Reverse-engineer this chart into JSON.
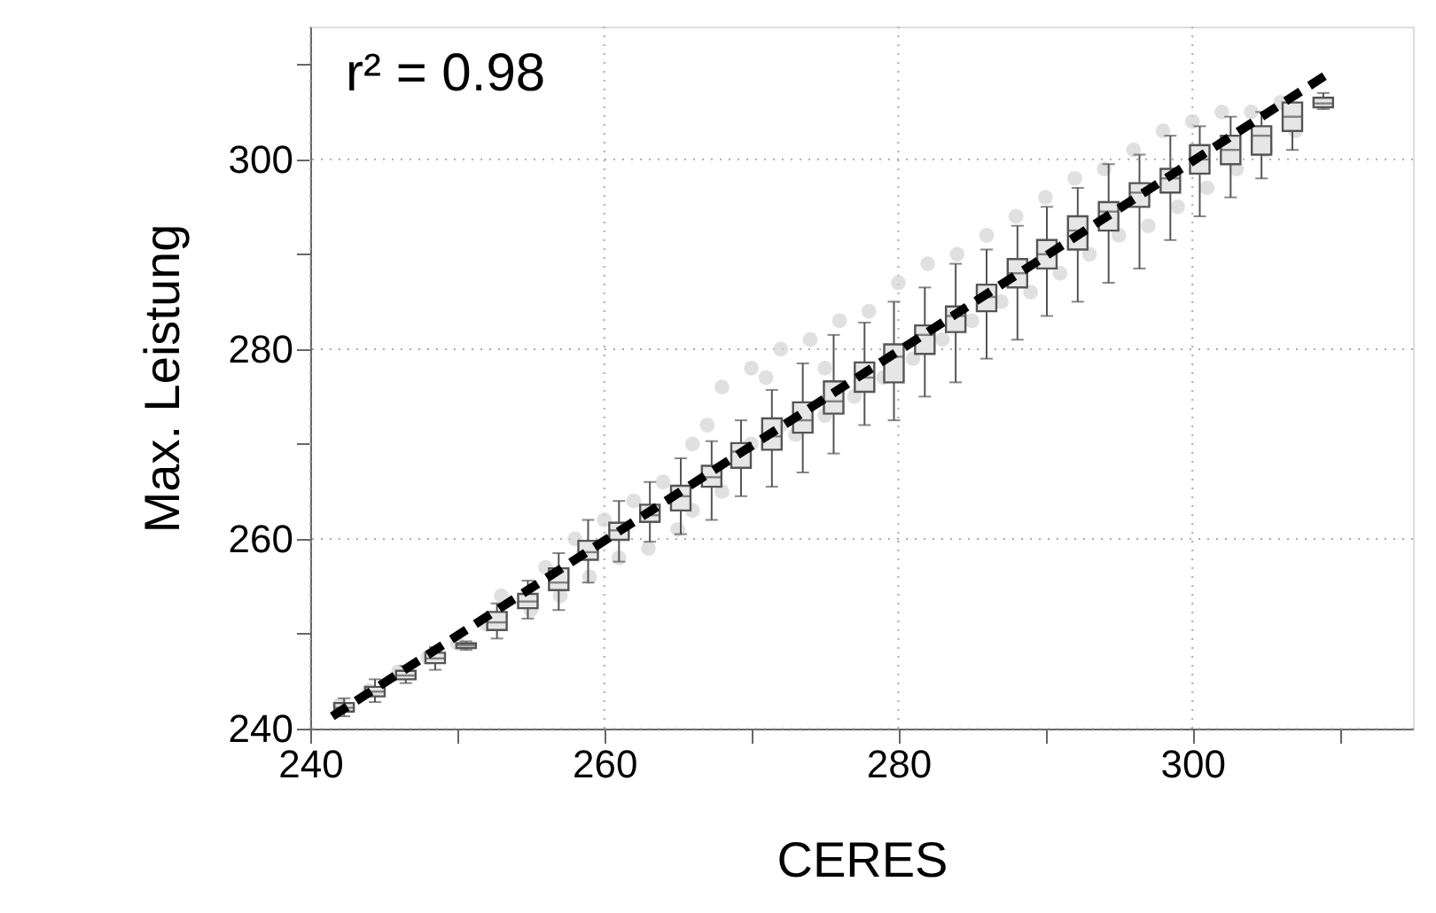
{
  "chart_data": {
    "type": "scatter",
    "xlabel": "CERES",
    "ylabel": "Max. Leistung",
    "annotations": [
      "r² = 0.98"
    ],
    "xlim": [
      240,
      315
    ],
    "ylim": [
      240,
      314
    ],
    "xticks": [
      240,
      {
        "value": 250,
        "label": null
      },
      260,
      {
        "value": 270,
        "label": null
      },
      280,
      {
        "value": 290,
        "label": null
      },
      300,
      {
        "value": 310,
        "label": null
      }
    ],
    "yticks": [
      240,
      {
        "value": 250,
        "label": null
      },
      260,
      {
        "value": 270,
        "label": null
      },
      280,
      {
        "value": 290,
        "label": null
      },
      300,
      {
        "value": 310,
        "label": null
      }
    ],
    "grid": true,
    "series": [
      {
        "color": "#d3d3d3",
        "marker": "circle",
        "x": [
          242,
          244,
          246,
          248,
          250,
          252,
          253,
          255,
          256,
          257,
          258,
          259,
          260,
          261,
          262,
          263,
          264,
          265,
          266,
          266,
          267,
          268,
          268,
          270,
          270,
          271,
          272,
          272,
          273,
          274,
          275,
          275,
          276,
          277,
          278,
          279,
          280,
          281,
          282,
          283,
          284,
          285,
          286,
          287,
          288,
          289,
          290,
          291,
          292,
          293,
          294,
          295,
          296,
          297,
          298,
          299,
          300,
          301,
          302,
          303,
          304,
          305,
          306,
          307
        ],
        "values": [
          242.5,
          244,
          246,
          247.5,
          249,
          251,
          254,
          252.5,
          257,
          254,
          260,
          256,
          262,
          258,
          264,
          259,
          266,
          261,
          270,
          263,
          272,
          265,
          276,
          278,
          270,
          277,
          272,
          280,
          271,
          281,
          278,
          273,
          283,
          275,
          284,
          277,
          287,
          279,
          289,
          281,
          290,
          283,
          292,
          285,
          294,
          286,
          296,
          288,
          298,
          290,
          299,
          292,
          301,
          293,
          303,
          295,
          304,
          297,
          305,
          299,
          305,
          301,
          306,
          303
        ]
      },
      {
        "type": "box",
        "color": "#555555",
        "x": [
          242.3,
          244.4,
          246.5,
          248.5,
          250.6,
          252.7,
          254.8,
          256.9,
          258.9,
          261.0,
          263.1,
          265.2,
          267.3,
          269.3,
          271.4,
          273.5,
          275.6,
          277.7,
          279.7,
          281.8,
          283.9,
          286.0,
          288.1,
          290.1,
          292.2,
          294.3,
          296.4,
          298.5,
          300.5,
          302.6,
          304.7,
          306.8,
          308.9
        ],
        "boxes": [
          {
            "low": 241.3,
            "q1": 241.8,
            "median": 242.2,
            "q3": 242.7,
            "high": 243.2
          },
          {
            "low": 242.8,
            "q1": 243.4,
            "median": 243.9,
            "q3": 244.4,
            "high": 245.2
          },
          {
            "low": 244.8,
            "q1": 245.2,
            "median": 245.6,
            "q3": 246.1,
            "high": 246.6
          },
          {
            "low": 246.2,
            "q1": 246.9,
            "median": 247.4,
            "q3": 248.0,
            "high": 248.6
          },
          {
            "low": 248.3,
            "q1": 248.5,
            "median": 248.8,
            "q3": 249.0,
            "high": 249.2
          },
          {
            "low": 249.5,
            "q1": 250.4,
            "median": 251.2,
            "q3": 252.3,
            "high": 253.2
          },
          {
            "low": 251.6,
            "q1": 252.7,
            "median": 253.4,
            "q3": 254.2,
            "high": 255.6
          },
          {
            "low": 252.5,
            "q1": 254.6,
            "median": 255.4,
            "q3": 256.9,
            "high": 258.5
          },
          {
            "low": 255.4,
            "q1": 257.8,
            "median": 258.6,
            "q3": 259.8,
            "high": 262.0
          },
          {
            "low": 257.6,
            "q1": 259.9,
            "median": 260.9,
            "q3": 261.7,
            "high": 264.0
          },
          {
            "low": 259.7,
            "q1": 261.8,
            "median": 262.5,
            "q3": 263.6,
            "high": 266.0
          },
          {
            "low": 260.5,
            "q1": 263.0,
            "median": 264.5,
            "q3": 265.6,
            "high": 268.5
          },
          {
            "low": 262.0,
            "q1": 265.5,
            "median": 266.5,
            "q3": 267.7,
            "high": 270.3
          },
          {
            "low": 264.5,
            "q1": 267.5,
            "median": 269.2,
            "q3": 270.1,
            "high": 272.5
          },
          {
            "low": 265.5,
            "q1": 269.4,
            "median": 270.8,
            "q3": 272.7,
            "high": 275.7
          },
          {
            "low": 267.0,
            "q1": 271.2,
            "median": 272.5,
            "q3": 274.4,
            "high": 278.5
          },
          {
            "low": 269.0,
            "q1": 273.2,
            "median": 274.5,
            "q3": 276.6,
            "high": 281.5
          },
          {
            "low": 272.0,
            "q1": 275.5,
            "median": 277.0,
            "q3": 278.6,
            "high": 282.8
          },
          {
            "low": 272.5,
            "q1": 276.5,
            "median": 279.2,
            "q3": 280.5,
            "high": 285.0
          },
          {
            "low": 275.0,
            "q1": 279.5,
            "median": 281.5,
            "q3": 282.5,
            "high": 286.5
          },
          {
            "low": 276.5,
            "q1": 281.8,
            "median": 283.5,
            "q3": 284.5,
            "high": 289.0
          },
          {
            "low": 279.0,
            "q1": 284.0,
            "median": 285.5,
            "q3": 286.8,
            "high": 290.5
          },
          {
            "low": 281.0,
            "q1": 286.5,
            "median": 288.0,
            "q3": 289.5,
            "high": 293.0
          },
          {
            "low": 283.5,
            "q1": 288.5,
            "median": 290.0,
            "q3": 291.5,
            "high": 295.0
          },
          {
            "low": 285.0,
            "q1": 290.5,
            "median": 292.5,
            "q3": 294.0,
            "high": 297.0
          },
          {
            "low": 287.0,
            "q1": 292.5,
            "median": 294.5,
            "q3": 295.5,
            "high": 299.5
          },
          {
            "low": 288.5,
            "q1": 295.0,
            "median": 296.5,
            "q3": 297.5,
            "high": 300.5
          },
          {
            "low": 291.5,
            "q1": 296.5,
            "median": 298.0,
            "q3": 299.0,
            "high": 302.5
          },
          {
            "low": 294.0,
            "q1": 298.5,
            "median": 300.0,
            "q3": 301.5,
            "high": 303.5
          },
          {
            "low": 296.0,
            "q1": 299.5,
            "median": 301.0,
            "q3": 302.5,
            "high": 304.5
          },
          {
            "low": 298.0,
            "q1": 300.5,
            "median": 302.5,
            "q3": 303.5,
            "high": 305.0
          },
          {
            "low": 301.0,
            "q1": 303.0,
            "median": 304.5,
            "q3": 306.0,
            "high": 306.5
          },
          {
            "low": 305.3,
            "q1": 305.5,
            "median": 305.9,
            "q3": 306.5,
            "high": 307.0
          }
        ]
      },
      {
        "type": "line",
        "color": "#000000",
        "line_style": "dashed",
        "x": [
          241.5,
          309.5
        ],
        "values": [
          241.3,
          309.3
        ]
      }
    ]
  }
}
